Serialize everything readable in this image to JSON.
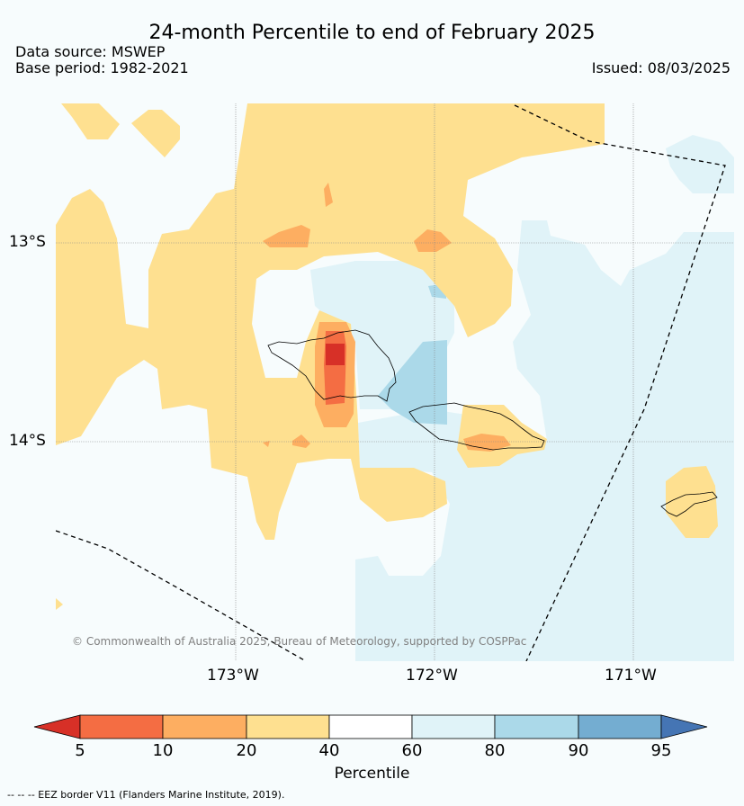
{
  "header": {
    "title": "24-month Percentile to end of February 2025",
    "data_source": "Data source: MSWEP",
    "base_period": "Base period: 1982-2021",
    "issued": "Issued: 08/03/2025"
  },
  "axes": {
    "lat_labels": [
      "13°S",
      "14°S"
    ],
    "lon_labels": [
      "173°W",
      "172°W",
      "171°W"
    ]
  },
  "attribution": "© Commonwealth of Australia 2025, Bureau of Meteorology, supported by COSPPac",
  "colorbar": {
    "label": "Percentile",
    "ticks": [
      "5",
      "10",
      "20",
      "40",
      "60",
      "80",
      "90",
      "95"
    ],
    "colors": {
      "lt5": "#d73027",
      "c5_10": "#f46d43",
      "c10_20": "#fdae61",
      "c20_40": "#fee090",
      "c40_60": "#ffffff",
      "c60_80": "#e0f3f8",
      "c80_90": "#abd9e9",
      "c90_95": "#74add1",
      "gt95": "#4575b4"
    }
  },
  "legend_note": "--  --  -- EEZ border V11 (Flanders Marine Institute, 2019)."
}
